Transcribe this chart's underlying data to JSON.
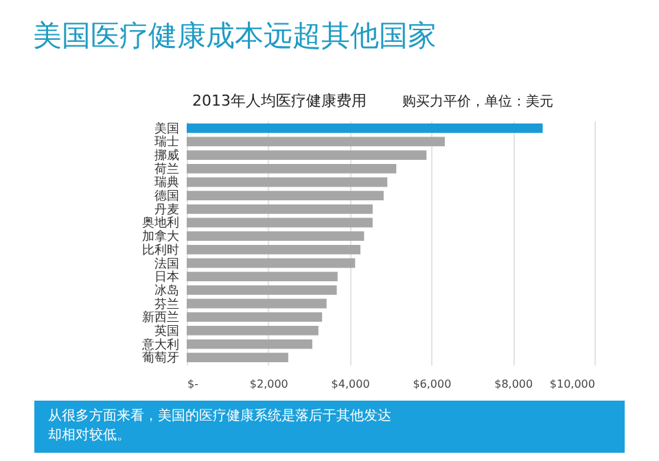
{
  "chart_data": {
    "type": "bar",
    "orientation": "horizontal",
    "title": "美国医疗健康成本远超其他国家",
    "subtitle": "2013年人均医疗健康费用",
    "annotations": [
      "购买力平价，单位：美元",
      "从很多方面来看，美国的医疗健康系统是落后于其他发达",
      "却相对较低。"
    ],
    "categories": [
      "美国",
      "瑞士",
      "挪威",
      "荷兰",
      "瑞典",
      "德国",
      "丹麦",
      "奥地利",
      "加拿大",
      "比利时",
      "法国",
      "日本",
      "冰岛",
      "芬兰",
      "新西兰",
      "英国",
      "意大利",
      "葡萄牙"
    ],
    "values": [
      8730,
      6330,
      5880,
      5140,
      4920,
      4830,
      4560,
      4560,
      4350,
      4260,
      4130,
      3700,
      3680,
      3430,
      3320,
      3230,
      3080,
      2490
    ],
    "colors": [
      "#1a9ad6",
      "#a6a6a6",
      "#a6a6a6",
      "#a6a6a6",
      "#a6a6a6",
      "#a6a6a6",
      "#a6a6a6",
      "#a6a6a6",
      "#a6a6a6",
      "#a6a6a6",
      "#a6a6a6",
      "#a6a6a6",
      "#a6a6a6",
      "#a6a6a6",
      "#a6a6a6",
      "#a6a6a6",
      "#a6a6a6",
      "#a6a6a6"
    ],
    "xlim": [
      0,
      10000
    ],
    "xticks": [
      {
        "value": 0,
        "label": "$-"
      },
      {
        "value": 2000,
        "label": "$2,000"
      },
      {
        "value": 4000,
        "label": "$4,000"
      },
      {
        "value": 6000,
        "label": "$6,000"
      },
      {
        "value": 8000,
        "label": "$8,000"
      },
      {
        "value": 10000,
        "label": "$10,000"
      }
    ],
    "grid": "x"
  }
}
